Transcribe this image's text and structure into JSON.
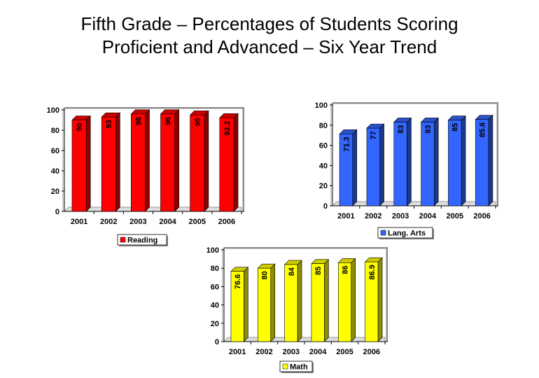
{
  "title": "Fifth Grade – Percentages of Students Scoring Proficient and Advanced – Six Year Trend",
  "chart_data": [
    {
      "type": "bar",
      "categories": [
        "2001",
        "2002",
        "2003",
        "2004",
        "2005",
        "2006"
      ],
      "series": [
        {
          "name": "Reading",
          "color": "#ff0000",
          "values": [
            90,
            93,
            96,
            96,
            95,
            92.2
          ]
        }
      ],
      "ylim": [
        0,
        100
      ],
      "yticks": [
        0,
        20,
        40,
        60,
        80,
        100
      ]
    },
    {
      "type": "bar",
      "categories": [
        "2001",
        "2002",
        "2003",
        "2004",
        "2005",
        "2006"
      ],
      "series": [
        {
          "name": "Lang. Arts",
          "color": "#3366ff",
          "values": [
            71.3,
            77,
            83,
            83,
            85,
            85.6
          ]
        }
      ],
      "ylim": [
        0,
        100
      ],
      "yticks": [
        0,
        20,
        40,
        60,
        80,
        100
      ]
    },
    {
      "type": "bar",
      "categories": [
        "2001",
        "2002",
        "2003",
        "2004",
        "2005",
        "2006"
      ],
      "series": [
        {
          "name": "Math",
          "color": "#ffff00",
          "values": [
            76.6,
            80,
            84,
            85,
            86,
            86.9
          ]
        }
      ],
      "ylim": [
        0,
        100
      ],
      "yticks": [
        0,
        20,
        40,
        60,
        80,
        100
      ]
    }
  ]
}
